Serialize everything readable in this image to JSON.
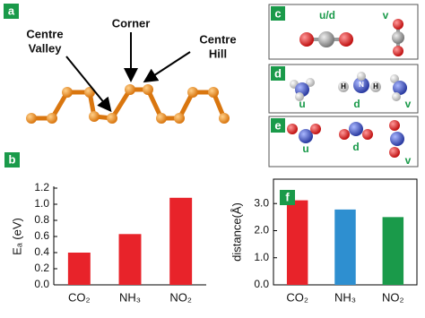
{
  "chart_data": [
    {
      "type": "bar",
      "panel": "b",
      "ylabel": "Eₐ (eV)",
      "categories": [
        "CO₂",
        "NH₃",
        "NO₂"
      ],
      "values": [
        0.4,
        0.63,
        1.08
      ],
      "color": "#e8232a",
      "ylim": [
        0,
        1.2
      ],
      "yticks": [
        {
          "value": 0,
          "label": "0.0"
        },
        0.2,
        0.4,
        0.6,
        0.8,
        {
          "value": 1,
          "label": "1.0"
        },
        1.2
      ]
    },
    {
      "type": "bar",
      "panel": "f",
      "ylabel": "distance(Å)",
      "categories": [
        "CO₂",
        "NH₃",
        "NO₂"
      ],
      "values": [
        3.12,
        2.78,
        2.5
      ],
      "colors": [
        "#e8232a",
        "#2e8fd0",
        "#1a9a4a"
      ],
      "ylim": [
        0,
        3.9
      ],
      "yticks": [
        {
          "value": 0,
          "label": "0.0"
        },
        {
          "value": 1,
          "label": "1.0"
        },
        {
          "value": 2,
          "label": "2.0"
        },
        {
          "value": 3,
          "label": "3.0"
        }
      ]
    }
  ],
  "panel_a": {
    "label": "a",
    "sites": [
      {
        "lines": [
          "Centre",
          "Valley"
        ]
      },
      {
        "lines": [
          "Corner"
        ]
      },
      {
        "lines": [
          "Centre",
          "Hill"
        ]
      }
    ]
  },
  "panel_c": {
    "label": "c",
    "orientations": [
      "u/d",
      "v"
    ]
  },
  "panel_d": {
    "label": "d",
    "orientations": [
      "u",
      "d",
      "v"
    ],
    "atoms": [
      "H",
      "N",
      "H"
    ]
  },
  "panel_e": {
    "label": "e",
    "orientations": [
      "u",
      "d",
      "v"
    ]
  }
}
